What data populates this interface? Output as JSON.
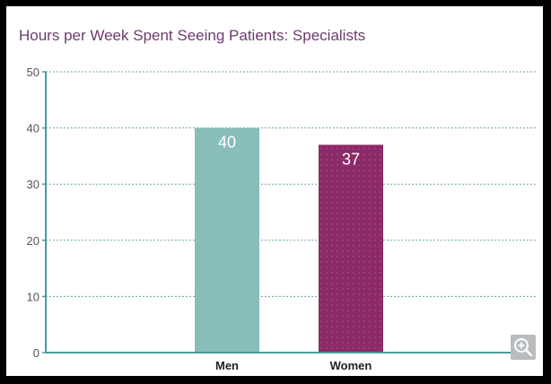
{
  "chart_data": {
    "type": "bar",
    "title": "Hours per Week Spent Seeing Patients: Specialists",
    "categories": [
      "Men",
      "Women"
    ],
    "values": [
      40,
      37
    ],
    "data_labels": [
      "40",
      "37"
    ],
    "ylim": [
      0,
      50
    ],
    "yticks": [
      "0",
      "10",
      "20",
      "30",
      "40",
      "50"
    ],
    "xlabel": "",
    "ylabel": "",
    "grid": true,
    "colors": [
      "#88bdb9",
      "#8c2a67"
    ],
    "axis_color": "#4a9a9e"
  },
  "controls": {
    "zoom_icon": "zoom-in-icon"
  }
}
